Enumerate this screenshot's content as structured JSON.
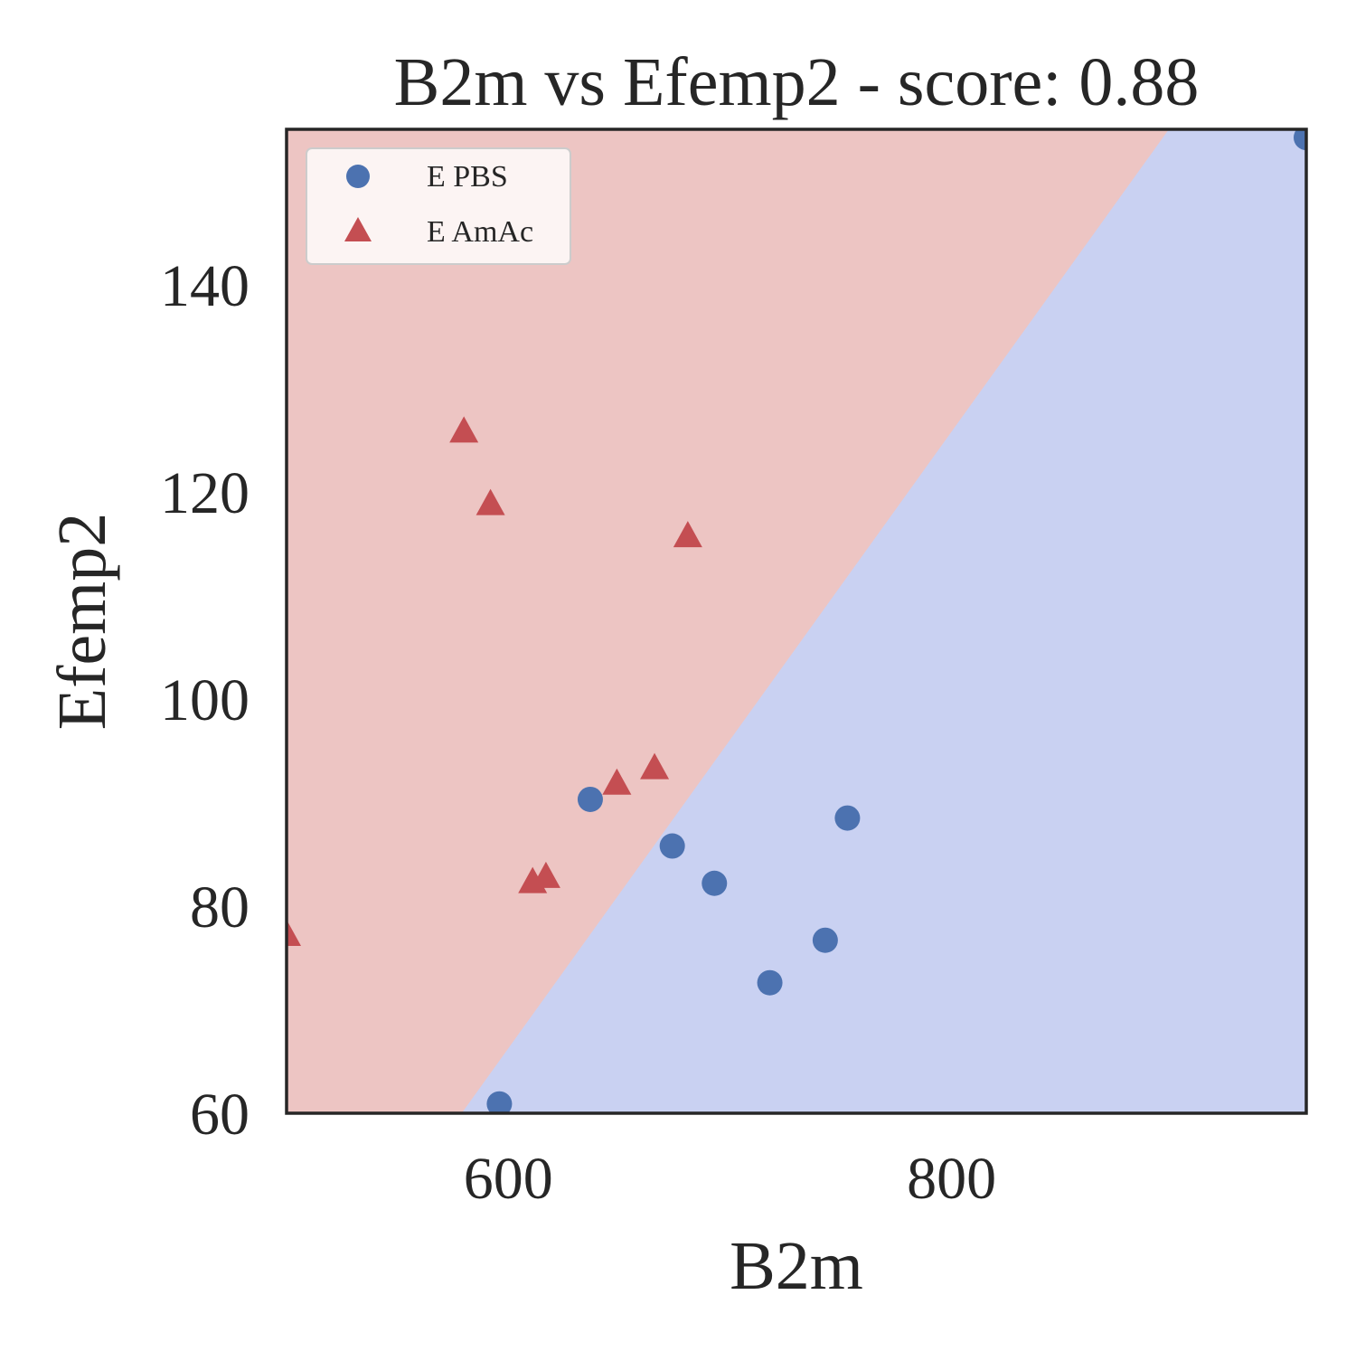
{
  "chart_data": {
    "type": "scatter",
    "title": "B2m vs Efemp2 - score: 0.88",
    "xlabel": "B2m",
    "ylabel": "Efemp2",
    "xlim": [
      500,
      960
    ],
    "ylim": [
      60,
      155
    ],
    "x_ticks": [
      600,
      800
    ],
    "y_ticks": [
      60,
      80,
      100,
      120,
      140
    ],
    "grid": false,
    "legend_position": "upper-left",
    "decision_boundary": {
      "points": [
        [
          579,
          60
        ],
        [
          898,
          155
        ]
      ],
      "regions": [
        {
          "side": "upper-left",
          "color": "#edc5c3"
        },
        {
          "side": "lower-right",
          "color": "#c9d1f2"
        }
      ]
    },
    "series": [
      {
        "name": "E PBS",
        "marker": "circle",
        "color": "#4c72b0",
        "points": [
          [
            596,
            60.9
          ],
          [
            637,
            90.3
          ],
          [
            674,
            85.8
          ],
          [
            693,
            82.2
          ],
          [
            718,
            72.6
          ],
          [
            743,
            76.7
          ],
          [
            753,
            88.5
          ],
          [
            960,
            154.2
          ]
        ]
      },
      {
        "name": "E AmAc",
        "marker": "triangle",
        "color": "#c44e52",
        "points": [
          [
            500,
            77.2
          ],
          [
            580,
            125.8
          ],
          [
            592,
            118.8
          ],
          [
            611,
            82.3
          ],
          [
            617,
            82.8
          ],
          [
            649,
            91.8
          ],
          [
            666,
            93.3
          ],
          [
            681,
            115.7
          ]
        ]
      }
    ]
  }
}
